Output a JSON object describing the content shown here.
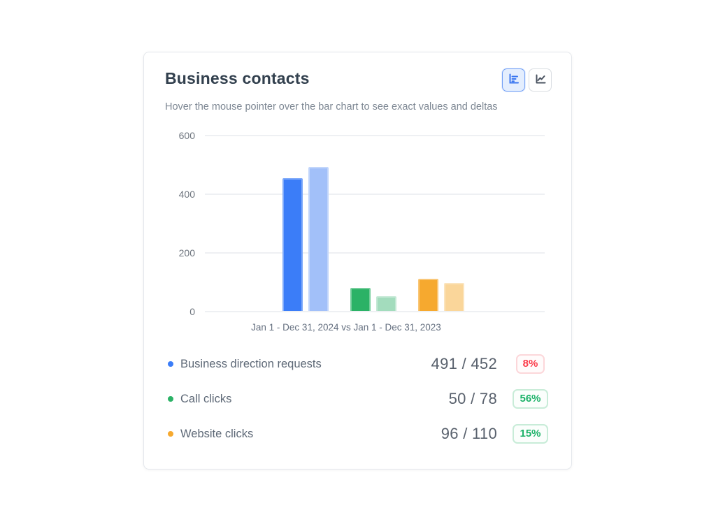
{
  "card": {
    "title": "Business contacts",
    "subtitle": "Hover the mouse pointer over the bar chart to see exact values and deltas"
  },
  "toggles": [
    {
      "name": "bar-chart-view",
      "icon": "bar-chart-icon",
      "active": true
    },
    {
      "name": "line-chart-view",
      "icon": "line-chart-icon",
      "active": false
    }
  ],
  "chart_data": {
    "type": "bar",
    "categories": [
      "Business direction requests",
      "Call clicks",
      "Website clicks"
    ],
    "series": [
      {
        "year": "2024",
        "period": "Jan 1 - Dec 31, 2024",
        "values": [
          452,
          78,
          110
        ],
        "colors": [
          "#3b7df8",
          "#2bb266",
          "#f6a92f"
        ]
      },
      {
        "year": "2023",
        "period": "Jan 1 - Dec 31, 2023",
        "values": [
          491,
          50,
          96
        ],
        "colors": [
          "#a2c0f9",
          "#a3dcbd",
          "#fad69a"
        ]
      }
    ],
    "x_caption": "Jan 1 - Dec 31, 2024 vs Jan 1 - Dec 31, 2023",
    "y_ticks": [
      0,
      200,
      400,
      600
    ],
    "ylim": [
      0,
      600
    ],
    "grid": true,
    "legend_position": "bottom"
  },
  "legend": {
    "rows": [
      {
        "label": "Business direction requests",
        "dot_color": "#3b7df8",
        "value": "491 / 452",
        "delta": "8%",
        "direction": "down"
      },
      {
        "label": "Call clicks",
        "dot_color": "#2bb266",
        "value": "50 / 78",
        "delta": "56%",
        "direction": "up"
      },
      {
        "label": "Website clicks",
        "dot_color": "#f6a92f",
        "value": "96 / 110",
        "delta": "15%",
        "direction": "up"
      }
    ]
  },
  "colors": {
    "accent_blue": "#3b7df8",
    "delta_down_red": "#fb3b49",
    "delta_up_green": "#1db269",
    "gridline": "#eef0f3"
  }
}
